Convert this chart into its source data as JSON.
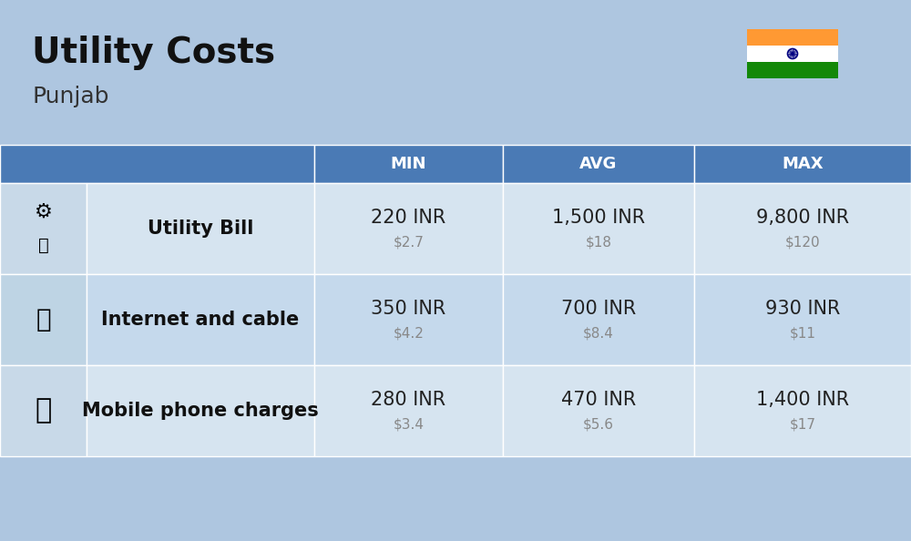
{
  "title": "Utility Costs",
  "subtitle": "Punjab",
  "background_color": "#aec6e0",
  "header_bg_color": "#4a7ab5",
  "header_text_color": "#ffffff",
  "row_bg_color_1": "#d6e4f0",
  "row_bg_color_2": "#c5d9ec",
  "icon_col_bg": "#b8cfe0",
  "label_col_bg": "#d6e4f0",
  "columns": [
    "MIN",
    "AVG",
    "MAX"
  ],
  "rows": [
    {
      "label": "Utility Bill",
      "min_inr": "220 INR",
      "min_usd": "$2.7",
      "avg_inr": "1,500 INR",
      "avg_usd": "$18",
      "max_inr": "9,800 INR",
      "max_usd": "$120",
      "icon": "utility"
    },
    {
      "label": "Internet and cable",
      "min_inr": "350 INR",
      "min_usd": "$4.2",
      "avg_inr": "700 INR",
      "avg_usd": "$8.4",
      "max_inr": "930 INR",
      "max_usd": "$11",
      "icon": "internet"
    },
    {
      "label": "Mobile phone charges",
      "min_inr": "280 INR",
      "min_usd": "$3.4",
      "avg_inr": "470 INR",
      "avg_usd": "$5.6",
      "max_inr": "1,400 INR",
      "max_usd": "$17",
      "icon": "mobile"
    }
  ],
  "flag_colors": [
    "#ff9933",
    "#ffffff",
    "#138808"
  ],
  "flag_ashoka_color": "#000080",
  "title_fontsize": 28,
  "subtitle_fontsize": 18,
  "header_fontsize": 13,
  "cell_inr_fontsize": 15,
  "cell_usd_fontsize": 11,
  "label_fontsize": 15,
  "inr_color": "#222222",
  "usd_color": "#888888"
}
